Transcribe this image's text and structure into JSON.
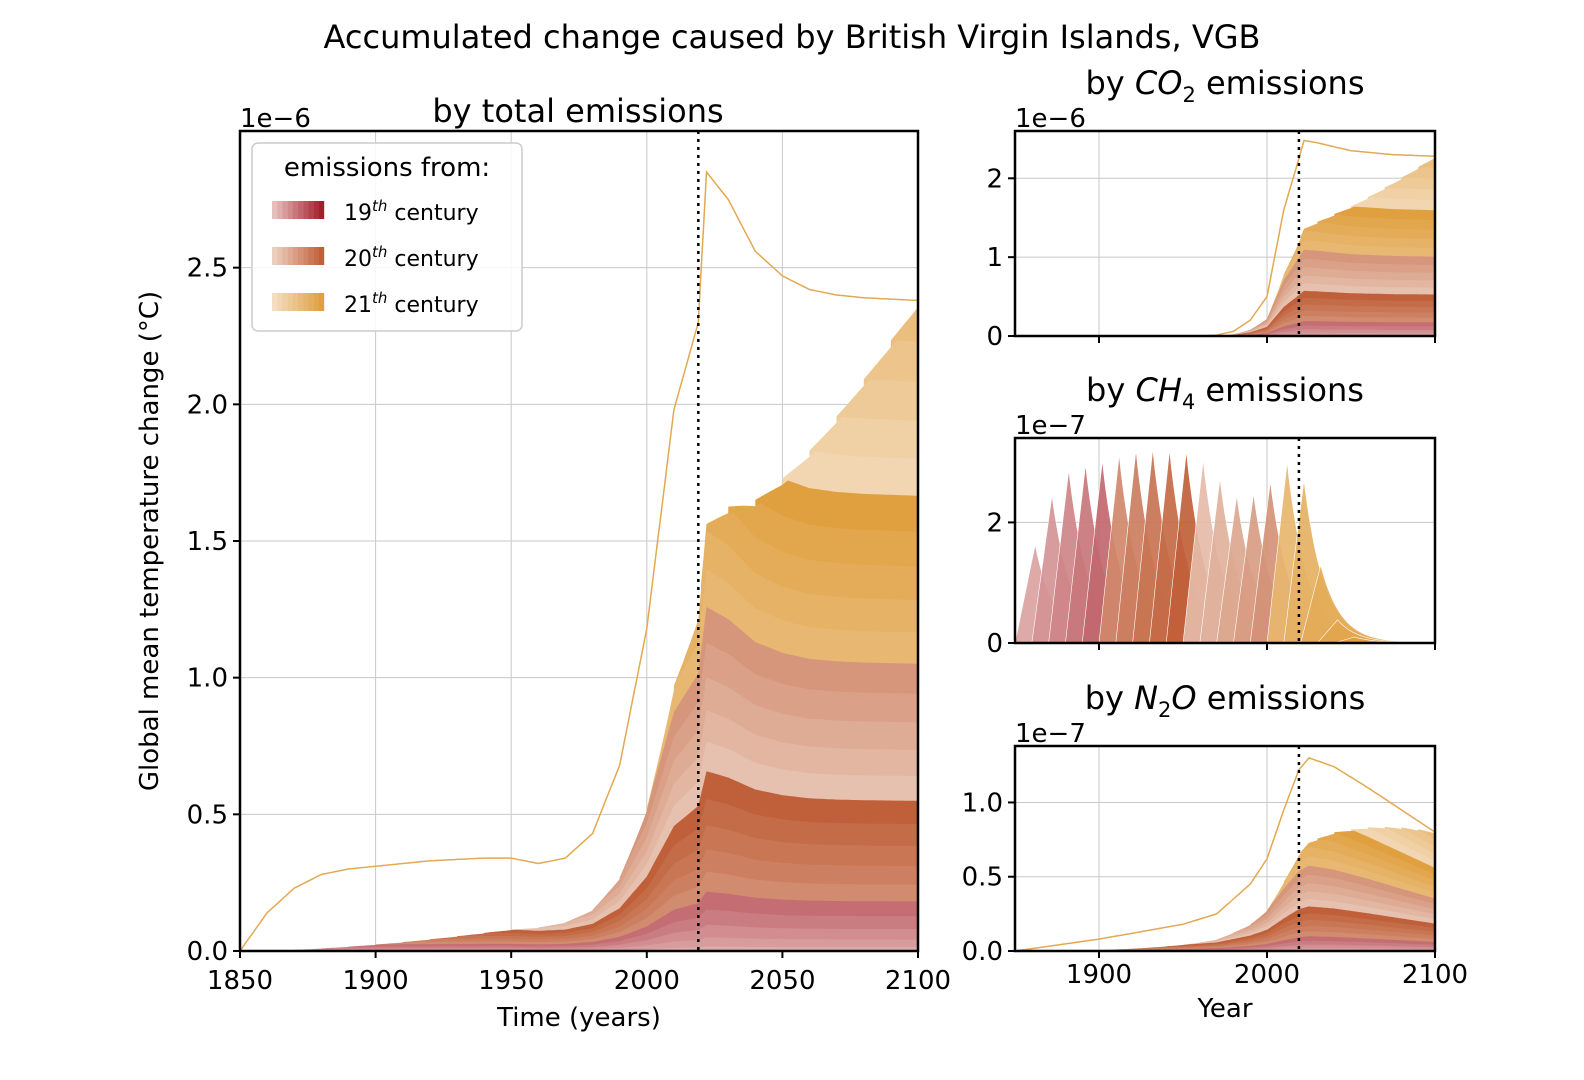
{
  "title": "Accumulated change caused by British Virgin Islands, VGB",
  "colors": {
    "c19": "#a31f2c",
    "c20": "#c0603a",
    "c21": "#e0a040",
    "grid": "#c8c8c8",
    "ref_line": "#000000"
  },
  "legend": {
    "title": "emissions from:",
    "entries": [
      {
        "base": "19",
        "sup": "th",
        "rest": " century",
        "color_key": "c19"
      },
      {
        "base": "20",
        "sup": "th",
        "rest": " century",
        "color_key": "c20"
      },
      {
        "base": "21",
        "sup": "th",
        "rest": " century",
        "color_key": "c21"
      }
    ]
  },
  "chart_data": [
    {
      "id": "total",
      "type": "area",
      "title": "by total emissions",
      "xlabel": "Time (years)",
      "ylabel": "Global mean temperature change (°C)",
      "offset_text": "1e−6",
      "xlim": [
        1850,
        2100
      ],
      "ylim": [
        0,
        3.0
      ],
      "xticks": [
        "1850",
        "1900",
        "1950",
        "2000",
        "2050",
        "2100"
      ],
      "yticks": [
        "0.0",
        "0.5",
        "1.0",
        "1.5",
        "2.0",
        "2.5"
      ],
      "ref_year": 2019,
      "stacked_series_total": {
        "x": [
          1850,
          1860,
          1870,
          1880,
          1890,
          1900,
          1910,
          1920,
          1930,
          1940,
          1950,
          1960,
          1970,
          1980,
          1990,
          2000,
          2010,
          2019,
          2022,
          2030,
          2040,
          2050,
          2060,
          2070,
          2080,
          2090,
          2100
        ],
        "y": [
          0,
          0.14,
          0.23,
          0.28,
          0.3,
          0.31,
          0.32,
          0.33,
          0.335,
          0.34,
          0.34,
          0.32,
          0.34,
          0.43,
          0.68,
          1.18,
          1.98,
          2.3,
          2.85,
          2.75,
          2.56,
          2.47,
          2.42,
          2.4,
          2.39,
          2.385,
          2.38
        ]
      },
      "band_boundaries_at_2100": [
        0.0,
        0.05,
        0.16,
        0.38,
        0.82,
        1.54,
        2.38
      ]
    },
    {
      "id": "co2",
      "type": "area",
      "title_pre": "by ",
      "title_chem": "CO",
      "title_sub": "2",
      "title_post": " emissions",
      "offset_text": "1e−6",
      "xlim": [
        1850,
        2100
      ],
      "ylim": [
        0,
        2.6
      ],
      "xticks": [],
      "yticks": [
        "0",
        "1",
        "2"
      ],
      "ref_year": 2019,
      "stacked_series_total": {
        "x": [
          1850,
          1960,
          1970,
          1980,
          1990,
          2000,
          2010,
          2019,
          2022,
          2030,
          2050,
          2075,
          2100
        ],
        "y": [
          0,
          0,
          0.01,
          0.06,
          0.2,
          0.5,
          1.6,
          2.25,
          2.48,
          2.45,
          2.35,
          2.3,
          2.28
        ]
      },
      "band_boundaries_at_2100": [
        0.0,
        0.1,
        0.28,
        0.75,
        1.45,
        2.28
      ]
    },
    {
      "id": "ch4",
      "type": "area",
      "title_pre": "by ",
      "title_chem": "CH",
      "title_sub": "4",
      "title_post": " emissions",
      "offset_text": "1e−7",
      "xlim": [
        1850,
        2100
      ],
      "ylim": [
        0,
        3.4
      ],
      "xticks": [],
      "yticks": [
        "0",
        "2"
      ],
      "ref_year": 2019,
      "envelope": {
        "x": [
          1850,
          1860,
          1870,
          1880,
          1890,
          1900,
          1910,
          1920,
          1930,
          1940,
          1950,
          1960,
          1970,
          1980,
          1990,
          2000,
          2010,
          2020,
          2030,
          2040,
          2050,
          2060,
          2070
        ],
        "y": [
          0,
          1.45,
          2.35,
          2.85,
          2.95,
          3.0,
          3.1,
          3.2,
          3.22,
          3.2,
          3.2,
          3.1,
          2.8,
          2.45,
          2.45,
          2.6,
          3.0,
          3.0,
          1.5,
          0.45,
          0.12,
          0.02,
          0
        ]
      }
    },
    {
      "id": "n2o",
      "type": "area",
      "title_pre": "by ",
      "title_chem": "N",
      "title_sub": "2",
      "title_chem2": "O",
      "title_post": " emissions",
      "offset_text": "1e−7",
      "xlabel": "Year",
      "xlim": [
        1850,
        2100
      ],
      "ylim": [
        0,
        1.38
      ],
      "xticks": [
        "1900",
        "2000",
        "2100"
      ],
      "yticks": [
        "0.0",
        "0.5",
        "1.0"
      ],
      "ref_year": 2019,
      "stacked_series_total": {
        "x": [
          1850,
          1900,
          1950,
          1970,
          1990,
          2000,
          2010,
          2019,
          2025,
          2040,
          2060,
          2080,
          2100
        ],
        "y": [
          0,
          0.08,
          0.18,
          0.25,
          0.45,
          0.62,
          0.95,
          1.22,
          1.3,
          1.24,
          1.1,
          0.95,
          0.8
        ]
      },
      "band_boundaries_at_2100": [
        0.0,
        0.1,
        0.22,
        0.35,
        0.5,
        0.65,
        0.8
      ]
    }
  ]
}
